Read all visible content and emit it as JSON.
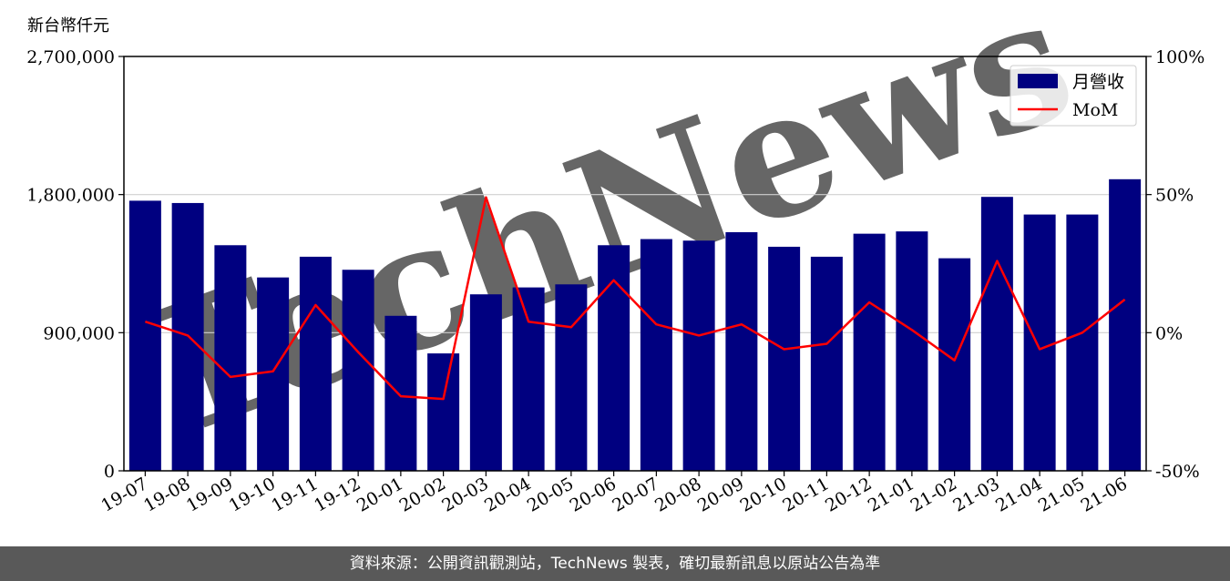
{
  "unit_label": "新台幣仟元",
  "footer": "資料來源：公開資訊觀測站，TechNews 製表，確切最新訊息以原站公告為準",
  "watermark": "TechNews",
  "colors": {
    "bar": "#000080",
    "line": "#ff0000",
    "grid": "#d0d0d0",
    "footer_bg": "#595959",
    "watermark": "#f8d8d8"
  },
  "chart_data": {
    "type": "bar+line",
    "categories": [
      "19-07",
      "19-08",
      "19-09",
      "19-10",
      "19-11",
      "19-12",
      "20-01",
      "20-02",
      "20-03",
      "20-04",
      "20-05",
      "20-06",
      "20-07",
      "20-08",
      "20-09",
      "20-10",
      "20-11",
      "20-12",
      "21-01",
      "21-02",
      "21-03",
      "21-04",
      "21-05",
      "21-06"
    ],
    "series": [
      {
        "name": "月營收",
        "type": "bar",
        "axis": "left",
        "values": [
          1760000,
          1745000,
          1470000,
          1260000,
          1395000,
          1310000,
          1010000,
          765000,
          1150000,
          1195000,
          1215000,
          1470000,
          1510000,
          1500000,
          1555000,
          1460000,
          1395000,
          1545000,
          1560000,
          1385000,
          1785000,
          1670000,
          1670000,
          1900000
        ]
      },
      {
        "name": "MoM",
        "type": "line",
        "axis": "right",
        "values": [
          4,
          -1,
          -16,
          -14,
          10,
          -7,
          -23,
          -24,
          49,
          4,
          2,
          19,
          3,
          -1,
          3,
          -6,
          -4,
          11,
          1,
          -10,
          26,
          -6,
          0,
          12
        ]
      }
    ],
    "y_left": {
      "min": 0,
      "max": 2700000,
      "ticks": [
        "0",
        "900,000",
        "1,800,000",
        "2,700,000"
      ],
      "tick_values": [
        0,
        900000,
        1800000,
        2700000
      ]
    },
    "y_right": {
      "min": -50,
      "max": 100,
      "ticks": [
        "-50%",
        "0%",
        "50%",
        "100%"
      ],
      "tick_values": [
        -50,
        0,
        50,
        100
      ]
    },
    "grid": "horizontal",
    "legend": {
      "position": "top-right",
      "labels": [
        "月營收",
        "MoM"
      ]
    }
  }
}
